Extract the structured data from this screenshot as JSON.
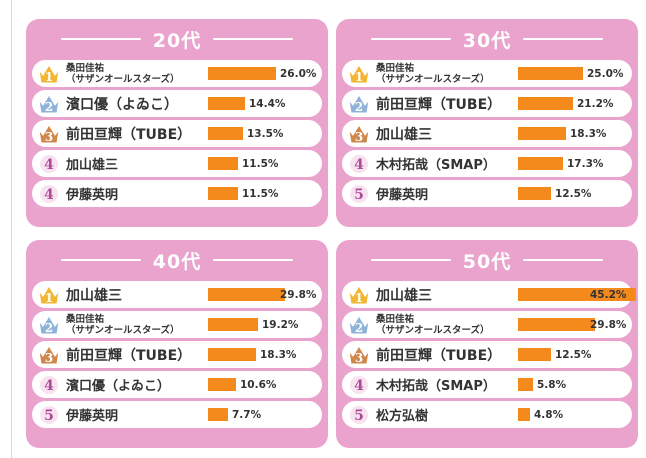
{
  "colors": {
    "panel": "#e9a3cc",
    "bar": "#f48a1c",
    "gold": "#f2b632",
    "silver": "#8fb3d8",
    "bronze": "#d0884a",
    "plain_rank": "#b0489a"
  },
  "chart_data": [
    {
      "type": "bar",
      "title": "20代",
      "categories": [
        "桑田佳祐（サザンオールスターズ）",
        "濱口優（よゐこ）",
        "前田亘輝（TUBE）",
        "加山雄三",
        "伊藤英明"
      ],
      "ranks": [
        "1",
        "2",
        "3",
        "4",
        "4"
      ],
      "values": [
        26.0,
        14.4,
        13.5,
        11.5,
        11.5
      ],
      "value_labels": [
        "26.0%",
        "14.4%",
        "13.5%",
        "11.5%",
        "11.5%"
      ],
      "rows": [
        {
          "name": "桑田佳祐",
          "sub": "（サザンオールスターズ）"
        },
        {
          "name": "濱口優（よゐこ）"
        },
        {
          "name": "前田亘輝（TUBE）"
        },
        {
          "name": "加山雄三"
        },
        {
          "name": "伊藤英明"
        }
      ]
    },
    {
      "type": "bar",
      "title": "30代",
      "categories": [
        "桑田佳祐（サザンオールスターズ）",
        "前田亘輝（TUBE）",
        "加山雄三",
        "木村拓哉（SMAP）",
        "伊藤英明"
      ],
      "ranks": [
        "1",
        "2",
        "3",
        "4",
        "5"
      ],
      "values": [
        25.0,
        21.2,
        18.3,
        17.3,
        12.5
      ],
      "value_labels": [
        "25.0%",
        "21.2%",
        "18.3%",
        "17.3%",
        "12.5%"
      ],
      "rows": [
        {
          "name": "桑田佳祐",
          "sub": "（サザンオールスターズ）"
        },
        {
          "name": "前田亘輝（TUBE）"
        },
        {
          "name": "加山雄三"
        },
        {
          "name": "木村拓哉（SMAP）"
        },
        {
          "name": "伊藤英明"
        }
      ]
    },
    {
      "type": "bar",
      "title": "40代",
      "categories": [
        "加山雄三",
        "桑田佳祐（サザンオールスターズ）",
        "前田亘輝（TUBE）",
        "濱口優（よゐこ）",
        "伊藤英明"
      ],
      "ranks": [
        "1",
        "2",
        "3",
        "4",
        "5"
      ],
      "values": [
        29.8,
        19.2,
        18.3,
        10.6,
        7.7
      ],
      "value_labels": [
        "29.8%",
        "19.2%",
        "18.3%",
        "10.6%",
        "7.7%"
      ],
      "rows": [
        {
          "name": "加山雄三"
        },
        {
          "name": "桑田佳祐",
          "sub": "（サザンオールスターズ）"
        },
        {
          "name": "前田亘輝（TUBE）"
        },
        {
          "name": "濱口優（よゐこ）"
        },
        {
          "name": "伊藤英明"
        }
      ]
    },
    {
      "type": "bar",
      "title": "50代",
      "categories": [
        "加山雄三",
        "桑田佳祐（サザンオールスターズ）",
        "前田亘輝（TUBE）",
        "木村拓哉（SMAP）",
        "松方弘樹"
      ],
      "ranks": [
        "1",
        "2",
        "3",
        "4",
        "5"
      ],
      "values": [
        45.2,
        29.8,
        12.5,
        5.8,
        4.8
      ],
      "value_labels": [
        "45.2%",
        "29.8%",
        "12.5%",
        "5.8%",
        "4.8%"
      ],
      "rows": [
        {
          "name": "加山雄三"
        },
        {
          "name": "桑田佳祐",
          "sub": "（サザンオールスターズ）"
        },
        {
          "name": "前田亘輝（TUBE）"
        },
        {
          "name": "木村拓哉（SMAP）"
        },
        {
          "name": "松方弘樹"
        }
      ]
    }
  ]
}
